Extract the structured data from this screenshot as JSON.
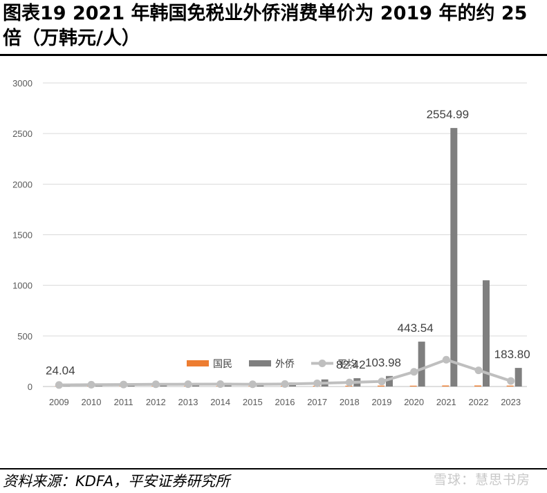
{
  "title": "图表19    2021 年韩国免税业外侨消费单价为 2019 年的约 25 倍（万韩元/人）",
  "source": "资料来源：KDFA，平安证券研究所",
  "watermark": "雪球：慧思书房",
  "chart_data": {
    "type": "bar",
    "title": "",
    "xlabel": "",
    "ylabel": "",
    "categories": [
      "2009",
      "2010",
      "2011",
      "2012",
      "2013",
      "2014",
      "2015",
      "2016",
      "2017",
      "2018",
      "2019",
      "2020",
      "2021",
      "2022",
      "2023"
    ],
    "ylim": [
      0,
      3000
    ],
    "yticks": [
      0,
      500,
      1000,
      1500,
      2000,
      2500,
      3000
    ],
    "grid": true,
    "legend_position": "bottom",
    "series": [
      {
        "name": "国民",
        "kind": "bar",
        "color": "#ED7D31",
        "values": [
          3,
          3,
          4,
          5,
          5,
          5,
          5,
          6,
          7,
          8,
          9,
          8,
          10,
          10,
          9
        ]
      },
      {
        "name": "外侨",
        "kind": "bar",
        "color": "#7F7F7F",
        "values": [
          24.04,
          27,
          30,
          32,
          34,
          36,
          35,
          40,
          70,
          82.42,
          103.98,
          443.54,
          2554.99,
          1050,
          183.8
        ]
      },
      {
        "name": "平均",
        "kind": "line",
        "color": "#BFBFBF",
        "values": [
          15,
          18,
          20,
          22,
          23,
          24,
          22,
          25,
          32,
          40,
          50,
          145,
          265,
          160,
          55
        ]
      }
    ],
    "data_labels": [
      {
        "category": "2009",
        "text": "24.04"
      },
      {
        "category": "2018",
        "text": "82.42"
      },
      {
        "category": "2019",
        "text": "103.98"
      },
      {
        "category": "2020",
        "text": "443.54"
      },
      {
        "category": "2021",
        "text": "2554.99"
      },
      {
        "category": "2023",
        "text": "183.80"
      }
    ]
  }
}
